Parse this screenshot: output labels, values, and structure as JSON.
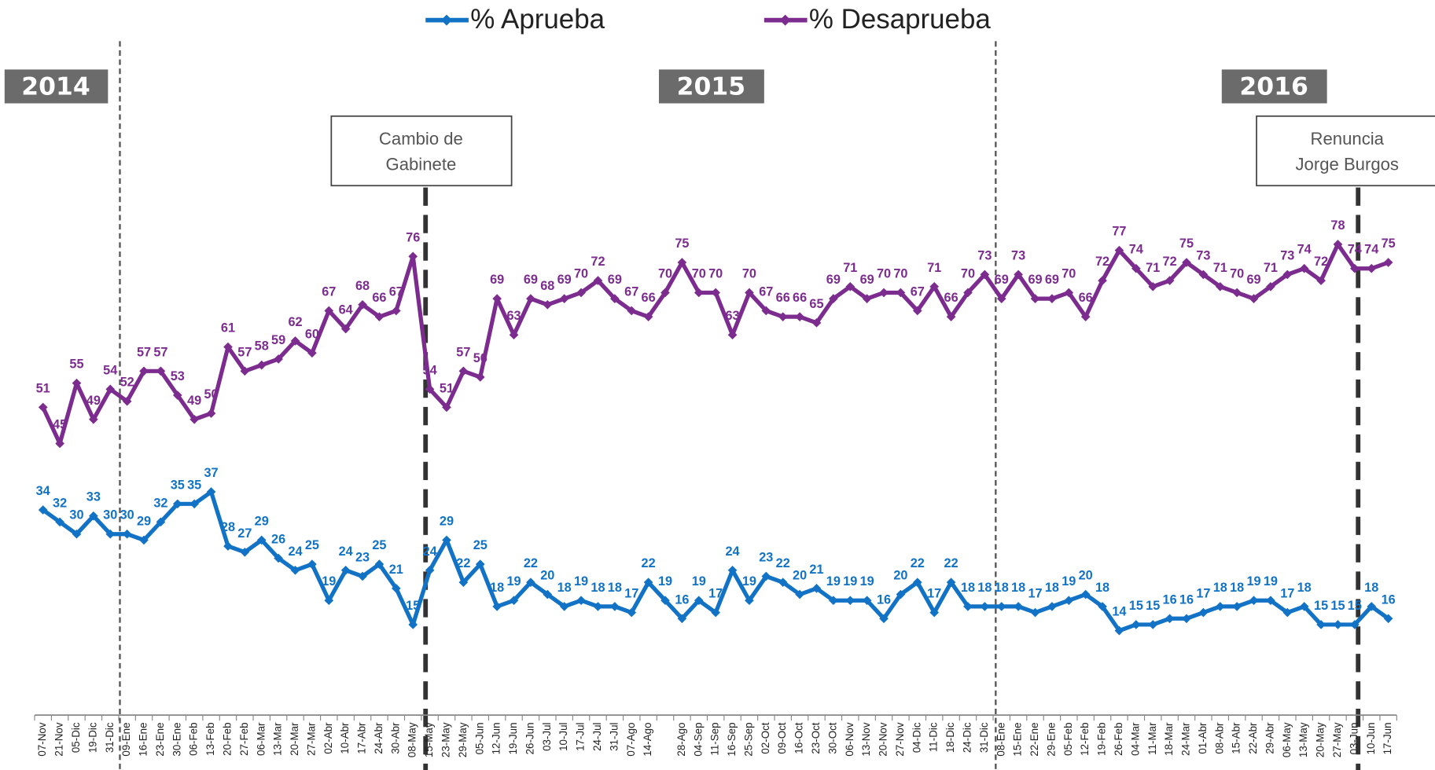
{
  "chart_data": {
    "type": "line",
    "categories": [
      "07-Nov",
      "21-Nov",
      "05-Dic",
      "19-Dic",
      "31-Dic",
      "09-Ene",
      "16-Ene",
      "23-Ene",
      "30-Ene",
      "06-Feb",
      "13-Feb",
      "20-Feb",
      "27-Feb",
      "06-Mar",
      "13-Mar",
      "20-Mar",
      "27-Mar",
      "02-Abr",
      "10-Abr",
      "17-Abr",
      "24-Abr",
      "30-Abr",
      "08-May",
      "15-May",
      "23-May",
      "29-May",
      "05-Jun",
      "12-Jun",
      "19-Jun",
      "26-Jun",
      "03-Jul",
      "10-Jul",
      "17-Jul",
      "24-Jul",
      "31-Jul",
      "07-Ago",
      "14-Ago",
      null,
      "28-Ago",
      "04-Sep",
      "11-Sep",
      "16-Sep",
      "25-Sep",
      "02-Oct",
      "09-Oct",
      "16-Oct",
      "23-Oct",
      "30-Oct",
      "06-Nov",
      "13-Nov",
      "20-Nov",
      "27-Nov",
      "04-Dic",
      "11-Dic",
      "18-Dic",
      "24-Dic",
      "31-Dic",
      "08-Ene",
      "15-Ene",
      "22-Ene",
      "29-Ene",
      "05-Feb",
      "12-Feb",
      "19-Feb",
      "26-Feb",
      "04-Mar",
      "11-Mar",
      "18-Mar",
      "24-Mar",
      "01-Abr",
      "08-Abr",
      "15-Abr",
      "22-Abr",
      "29-Abr",
      "06-May",
      "13-May",
      "20-May",
      "27-May",
      "03-Jun",
      "10-Jun",
      "17-Jun"
    ],
    "series": [
      {
        "name": "% Aprueba",
        "color": "#1273c6",
        "values": [
          34,
          32,
          30,
          33,
          30,
          30,
          29,
          32,
          35,
          35,
          37,
          28,
          27,
          29,
          26,
          24,
          25,
          19,
          24,
          23,
          25,
          21,
          15,
          24,
          29,
          22,
          25,
          18,
          19,
          22,
          20,
          18,
          19,
          18,
          18,
          17,
          22,
          19,
          16,
          19,
          17,
          24,
          19,
          23,
          22,
          20,
          21,
          19,
          19,
          19,
          16,
          20,
          22,
          17,
          22,
          18,
          18,
          18,
          18,
          17,
          18,
          19,
          20,
          18,
          14,
          15,
          15,
          16,
          16,
          17,
          18,
          18,
          19,
          19,
          17,
          18,
          15,
          15,
          15,
          18,
          16
        ]
      },
      {
        "name": "% Desaprueba",
        "color": "#7b2c8e",
        "values": [
          51,
          45,
          55,
          49,
          54,
          52,
          57,
          57,
          53,
          49,
          50,
          61,
          57,
          58,
          59,
          62,
          60,
          67,
          64,
          68,
          66,
          67,
          76,
          54,
          51,
          57,
          56,
          69,
          63,
          69,
          68,
          69,
          70,
          72,
          69,
          67,
          66,
          70,
          75,
          70,
          70,
          63,
          70,
          67,
          66,
          66,
          65,
          69,
          71,
          69,
          70,
          70,
          67,
          71,
          66,
          70,
          73,
          69,
          73,
          69,
          69,
          70,
          66,
          72,
          77,
          74,
          71,
          72,
          75,
          73,
          71,
          70,
          69,
          71,
          73,
          74,
          72,
          78,
          74,
          74,
          75
        ]
      }
    ],
    "ylim": [
      0,
      100
    ],
    "year_labels": [
      "2014",
      "2015",
      "2016"
    ],
    "annotations": [
      [
        "Cambio de",
        "Gabinete"
      ],
      [
        "Renuncia",
        "Jorge Burgos"
      ]
    ]
  }
}
